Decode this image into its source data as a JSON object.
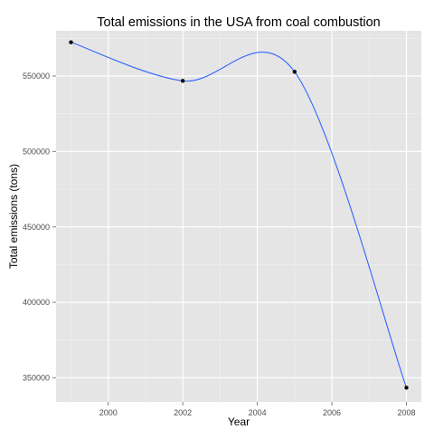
{
  "chart_data": {
    "type": "line",
    "title": "Total emissions in the USA from coal combustion",
    "xlabel": "Year",
    "ylabel": "Total emissions (tons)",
    "xlim": [
      1998.6,
      2008.4
    ],
    "ylim": [
      334000,
      580000
    ],
    "x_ticks": [
      2000,
      2002,
      2004,
      2006,
      2008
    ],
    "y_ticks": [
      350000,
      400000,
      450000,
      500000,
      550000
    ],
    "grid": true,
    "legend": "none",
    "smoothed": true,
    "series": [
      {
        "x": [
          1999,
          2002,
          2005,
          2008
        ],
        "y": [
          572400,
          546800,
          552800,
          343400
        ],
        "point_color": "#000000"
      }
    ],
    "colors": {
      "panel_background": "#e5e5e5",
      "grid_major": "#ffffff",
      "grid_minor": "#f2f2f2",
      "line": "#3366ff",
      "points": "#000000",
      "tick_text": "#4d4d4d",
      "label_text": "#000000"
    }
  }
}
